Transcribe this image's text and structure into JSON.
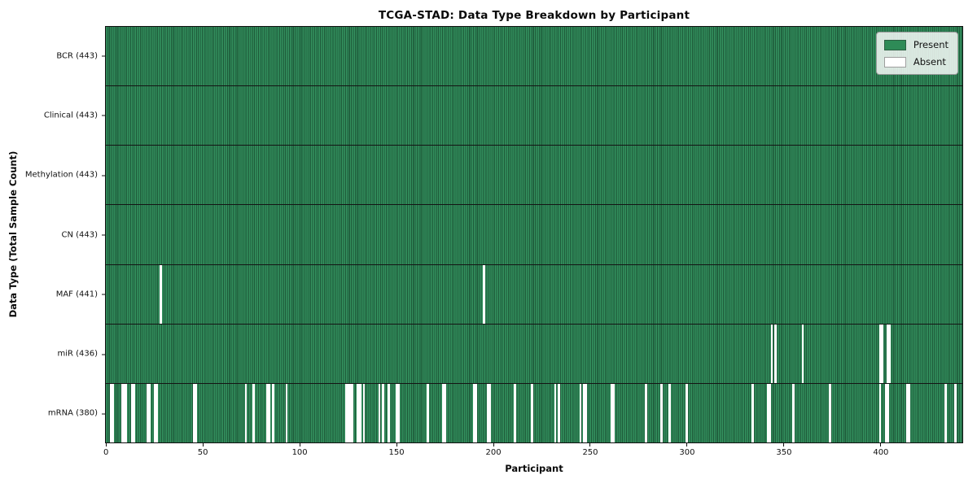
{
  "chart_data": {
    "type": "heatmap",
    "title": "TCGA-STAD: Data Type Breakdown by Participant",
    "xlabel": "Participant",
    "ylabel": "Data Type (Total Sample Count)",
    "n_participants": 443,
    "x_ticks": [
      0,
      50,
      100,
      150,
      200,
      250,
      300,
      350,
      400
    ],
    "legend_position": "upper right",
    "grid": false,
    "colors": {
      "present_fill": "#2e8b57",
      "present_edge": "#1d5838",
      "absent_fill": "#ffffff",
      "frame": "#0f0f0f"
    },
    "legend_entries": [
      {
        "label": "Present",
        "color": "#2e8b57"
      },
      {
        "label": "Absent",
        "color": "#ffffff"
      }
    ],
    "rows": [
      {
        "label": "BCR (443)",
        "data_type": "BCR",
        "present_count": 443,
        "absent_count": 0,
        "absent_participants": []
      },
      {
        "label": "Clinical (443)",
        "data_type": "Clinical",
        "present_count": 443,
        "absent_count": 0,
        "absent_participants": []
      },
      {
        "label": "Methylation (443)",
        "data_type": "Methylation",
        "present_count": 443,
        "absent_count": 0,
        "absent_participants": []
      },
      {
        "label": "CN (443)",
        "data_type": "CN",
        "present_count": 443,
        "absent_count": 0,
        "absent_participants": []
      },
      {
        "label": "MAF (441)",
        "data_type": "MAF",
        "present_count": 441,
        "absent_count": 2,
        "absent_participants": [
          28,
          195
        ]
      },
      {
        "label": "miR (436)",
        "data_type": "miR",
        "present_count": 436,
        "absent_count": 7,
        "absent_participants": [
          344,
          346,
          360,
          400,
          401,
          404,
          405
        ]
      },
      {
        "label": "mRNA (380)",
        "data_type": "mRNA",
        "present_count": 380,
        "absent_count": 63,
        "absent_participants": [
          2,
          3,
          8,
          9,
          10,
          13,
          14,
          21,
          22,
          25,
          26,
          45,
          46,
          72,
          76,
          83,
          84,
          86,
          93,
          124,
          125,
          126,
          127,
          130,
          131,
          133,
          141,
          143,
          146,
          150,
          151,
          166,
          174,
          175,
          190,
          191,
          197,
          198,
          211,
          220,
          232,
          234,
          245,
          247,
          248,
          261,
          262,
          279,
          287,
          291,
          300,
          334,
          342,
          343,
          355,
          374,
          400,
          403,
          404,
          414,
          415,
          434,
          439
        ]
      }
    ]
  }
}
